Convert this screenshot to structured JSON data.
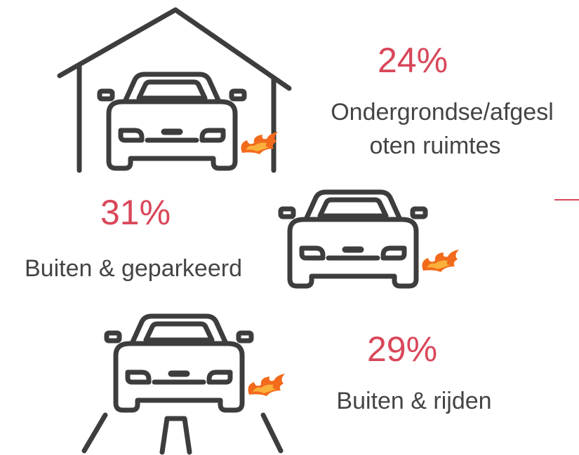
{
  "items": [
    {
      "percent": "24%",
      "label_lines": [
        "Ondergrondse/afgesl",
        "oten ruimtes"
      ]
    },
    {
      "percent": "31%",
      "label_lines": [
        "Buiten & geparkeerd"
      ]
    },
    {
      "percent": "29%",
      "label_lines": [
        "Buiten & rijden"
      ]
    }
  ]
}
